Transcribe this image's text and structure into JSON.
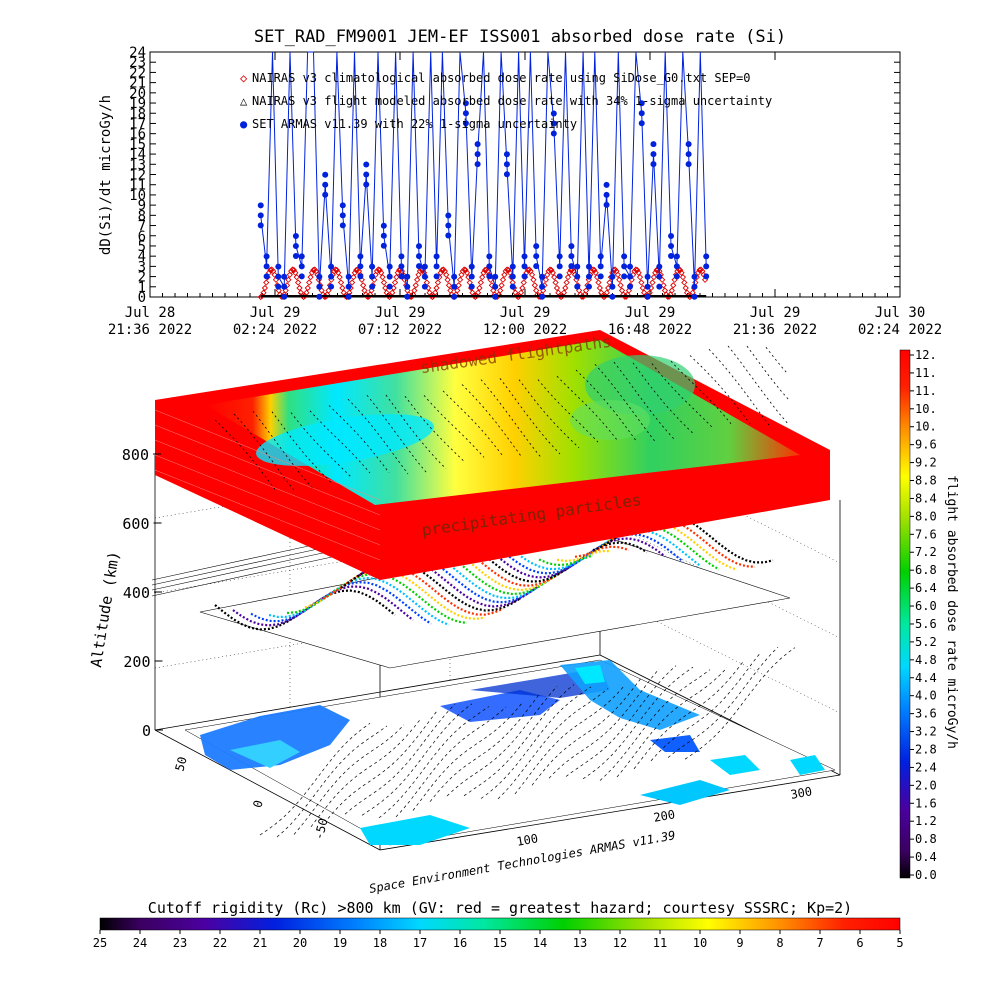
{
  "chart_data": [
    {
      "type": "line",
      "title": "SET_RAD_FM9001  JEM-EF ISS001 absorbed dose rate (Si)",
      "ylabel": "dD(Si)/dt microGy/h",
      "ylim": [
        0,
        24
      ],
      "yticks": [
        "0",
        "1",
        "2",
        "3",
        "4",
        "5",
        "6",
        "7",
        "8",
        "9",
        "10",
        "11",
        "12",
        "13",
        "14",
        "15",
        "16",
        "17",
        "18",
        "19",
        "20",
        "21",
        "22",
        "23",
        "24"
      ],
      "xlim": [
        0,
        29.8
      ],
      "xtick_labels": [
        {
          "line1": "Jul 28",
          "line2": "21:36 2022"
        },
        {
          "line1": "Jul 29",
          "line2": "02:24 2022"
        },
        {
          "line1": "Jul 29",
          "line2": "07:12 2022"
        },
        {
          "line1": "Jul 29",
          "line2": "12:00 2022"
        },
        {
          "line1": "Jul 29",
          "line2": "16:48 2022"
        },
        {
          "line1": "Jul 29",
          "line2": "21:36 2022"
        },
        {
          "line1": "Jul 30",
          "line2": "02:24 2022"
        }
      ],
      "legend": [
        {
          "symbol": "◇",
          "color": "#dd0000",
          "text": "NAIRAS v3 climatological absorbed dose rate using SiDose_G0.txt SEP=0"
        },
        {
          "symbol": "△",
          "color": "#000000",
          "text": "NAIRAS v3 flight modeled absorbed dose rate with 34% 1-sigma uncertainty"
        },
        {
          "symbol": "●",
          "color": "#0022dd",
          "text": "SET ARMAS v11.39 with 22% 1-sigma uncertainty"
        }
      ],
      "series": [
        {
          "name": "NAIRAS v3 climatological absorbed dose rate using SiDose_G0.txt SEP=0",
          "color": "#dd0000",
          "period_h": 1.55,
          "min": 0,
          "max": 2.7,
          "x_start": 4.4,
          "x_end": 22.1
        },
        {
          "name": "NAIRAS v3 flight modeled absorbed dose rate with 34% 1-sigma uncertainty",
          "color": "#000000",
          "values": 0.1,
          "x_start": 4.4,
          "x_end": 22.1
        },
        {
          "name": "SET ARMAS v11.39 with 22% 1-sigma uncertainty",
          "color": "#0022dd",
          "x_start": 4.4,
          "x_end": 22.1,
          "values": [
            8,
            3,
            24,
            2,
            1,
            24,
            5,
            3,
            24,
            24,
            1,
            11,
            2,
            24,
            8,
            1,
            24,
            3,
            12,
            2,
            24,
            6,
            2,
            24,
            3,
            1,
            24,
            4,
            2,
            24,
            3,
            24,
            7,
            1,
            24,
            18,
            2,
            14,
            24,
            3,
            1,
            24,
            13,
            2,
            24,
            3,
            24,
            4,
            1,
            24,
            17,
            3,
            24,
            4,
            2,
            24,
            2,
            24,
            3,
            10,
            1,
            24,
            3,
            2,
            24,
            18,
            1,
            14,
            2,
            24,
            5,
            3,
            24,
            14,
            1,
            24,
            3
          ]
        }
      ]
    },
    {
      "type": "heatmap",
      "description_labels": [
        "shadowed flightpaths",
        "precipitating particles"
      ],
      "zlabel": "Altitude (km)",
      "zticks": [
        "0",
        "200",
        "400",
        "600",
        "800"
      ],
      "lat_ticks": [
        "50",
        "0",
        "-50"
      ],
      "lon_ticks": [
        "100",
        "200",
        "300"
      ],
      "credit": "Space Environment Technologies ARMAS v11.39"
    },
    {
      "type": "heatmap",
      "colorbar": "right",
      "label": "flight absorbed dose rate microGy/h",
      "ticks": [
        "12.",
        "11.",
        "11.",
        "10.",
        "10.",
        "9.6",
        "9.2",
        "8.8",
        "8.4",
        "8.0",
        "7.6",
        "7.2",
        "6.8",
        "6.4",
        "6.0",
        "5.6",
        "5.2",
        "4.8",
        "4.4",
        "4.0",
        "3.6",
        "3.2",
        "2.8",
        "2.4",
        "2.0",
        "1.6",
        "1.2",
        "0.8",
        "0.4",
        "0.0"
      ]
    },
    {
      "type": "heatmap",
      "colorbar": "bottom",
      "label": "Cutoff rigidity (Rc) >800 km (GV: red = greatest hazard; courtesy SSSRC; Kp=2)",
      "ticks": [
        "25",
        "24",
        "23",
        "22",
        "21",
        "20",
        "19",
        "18",
        "17",
        "16",
        "15",
        "14",
        "13",
        "12",
        "11",
        "10",
        "9",
        "8",
        "7",
        "6",
        "5"
      ]
    }
  ]
}
